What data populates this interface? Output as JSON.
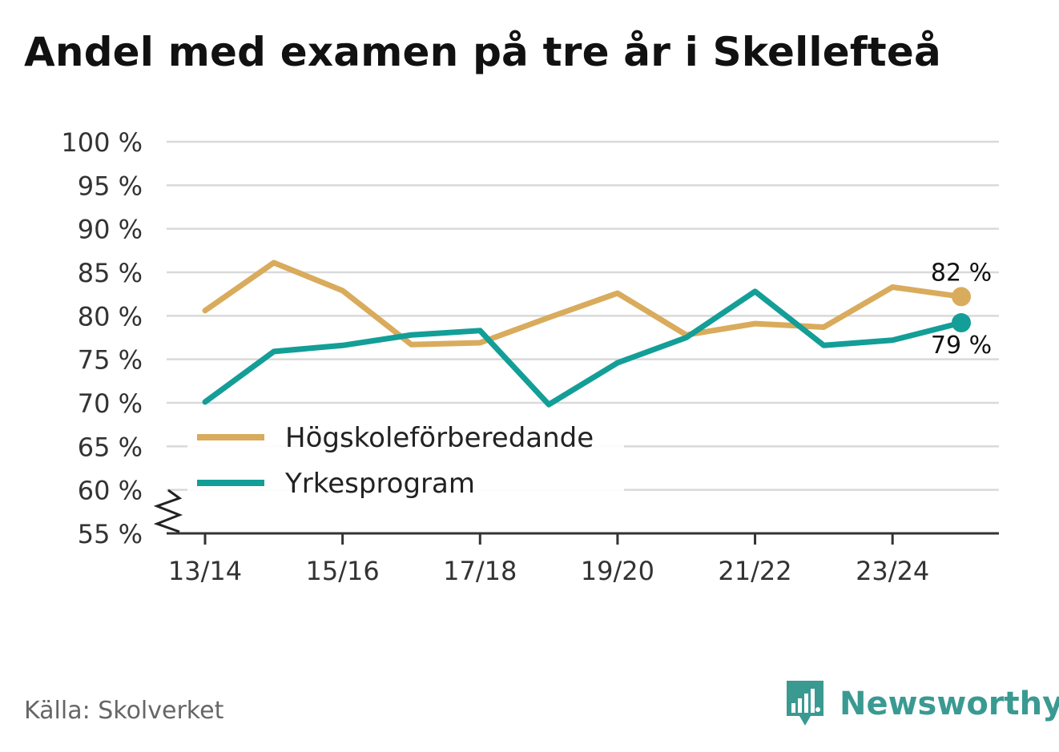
{
  "title": "Andel med examen på tre år i Skellefteå",
  "source": "Källa: Skolverket",
  "brand": "Newsworthy",
  "chart_data": {
    "type": "line",
    "x": [
      "13/14",
      "14/15",
      "15/16",
      "16/17",
      "17/18",
      "18/19",
      "19/20",
      "20/21",
      "21/22",
      "22/23",
      "23/24",
      "24/25"
    ],
    "x_tick_labels": [
      "13/14",
      "15/16",
      "17/18",
      "19/20",
      "21/22",
      "23/24"
    ],
    "y_tick_labels": [
      "100 %",
      "95 %",
      "90 %",
      "85 %",
      "80 %",
      "75 %",
      "70 %",
      "65 %",
      "60 %",
      "55 %"
    ],
    "ylim": [
      55,
      100
    ],
    "series": [
      {
        "name": "Högskoleförberedande",
        "color": "#d9ab5c",
        "values": [
          80.6,
          86.1,
          82.9,
          76.7,
          76.9,
          79.8,
          82.6,
          77.8,
          79.1,
          78.7,
          83.3,
          82.2
        ],
        "end_label": "82 %"
      },
      {
        "name": "Yrkesprogram",
        "color": "#139e97",
        "values": [
          70.1,
          75.9,
          76.6,
          77.8,
          78.3,
          69.8,
          74.6,
          77.5,
          82.8,
          76.6,
          77.2,
          79.2
        ],
        "end_label": "79 %"
      }
    ],
    "legend_position": "lower-left",
    "grid": true,
    "axis_break": true
  }
}
